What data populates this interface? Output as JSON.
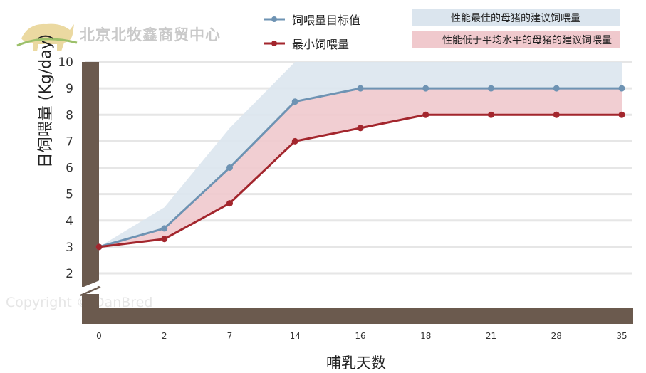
{
  "watermark": {
    "company": "北京北牧鑫商贸中心",
    "copyright": "Copyright © DanBred"
  },
  "legend": {
    "target_line": "饲喂量目标值",
    "min_line": "最小饲喂量",
    "best_band": "性能最佳的母猪的建议饲喂量",
    "below_avg_band": "性能低于平均水平的母猪的建议饲喂量"
  },
  "colors": {
    "target_line": "#6e93b3",
    "min_line": "#a3262d",
    "best_band": "#dbe5ee",
    "below_avg_band": "#f0c9cd",
    "axis": "#6b5a4e",
    "grid": "#e6e6e6"
  },
  "chart_data": {
    "type": "line",
    "categories": [
      "0",
      "2",
      "7",
      "14",
      "16",
      "18",
      "21",
      "28",
      "35"
    ],
    "xlabel": "哺乳天数",
    "ylabel": "日饲喂量 (Kg/day)",
    "yticks": [
      "2",
      "3",
      "4",
      "5",
      "6",
      "7",
      "8",
      "9",
      "10"
    ],
    "ylim": [
      2,
      10
    ],
    "axis_break": true,
    "grid": true,
    "legend_position": "top",
    "series": [
      {
        "name": "饲喂量目标值",
        "values": [
          3.0,
          3.7,
          6.0,
          8.5,
          9.0,
          9.0,
          9.0,
          9.0,
          9.0
        ]
      },
      {
        "name": "最小饲喂量",
        "values": [
          3.0,
          3.3,
          4.65,
          7.0,
          7.5,
          8.0,
          8.0,
          8.0,
          8.0
        ]
      }
    ],
    "bands": [
      {
        "name": "性能最佳的母猪的建议饲喂量",
        "lower": [
          3.0,
          3.7,
          6.0,
          8.5,
          9.0,
          9.0,
          9.0,
          9.0,
          9.0
        ],
        "upper": [
          3.0,
          4.5,
          7.5,
          10.0,
          10.0,
          10.0,
          10.0,
          10.0,
          10.0
        ]
      },
      {
        "name": "性能低于平均水平的母猪的建议饲喂量",
        "lower": [
          3.0,
          3.3,
          4.65,
          7.0,
          7.5,
          8.0,
          8.0,
          8.0,
          8.0
        ],
        "upper": [
          3.0,
          3.7,
          6.0,
          8.5,
          9.0,
          9.0,
          9.0,
          9.0,
          9.0
        ]
      }
    ]
  }
}
